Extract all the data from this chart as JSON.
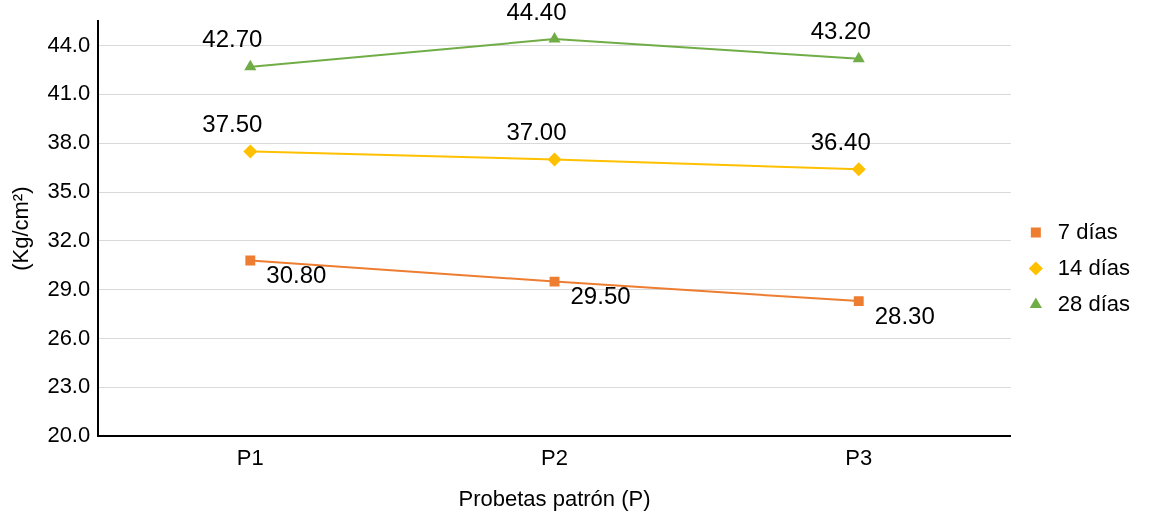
{
  "chart_data": {
    "type": "line",
    "xlabel": "Probetas patrón (P)",
    "ylabel": "(Kg/cm²)",
    "categories": [
      "P1",
      "P2",
      "P3"
    ],
    "series": [
      {
        "name": "7 días",
        "color": "#ed7d31",
        "marker": "square",
        "values": [
          30.8,
          29.5,
          28.3
        ],
        "value_labels": [
          "30.80",
          "29.50",
          "28.30"
        ]
      },
      {
        "name": "14 días",
        "color": "#ffc000",
        "marker": "diamond",
        "values": [
          37.5,
          37.0,
          36.4
        ],
        "value_labels": [
          "37.50",
          "37.00",
          "36.40"
        ]
      },
      {
        "name": "28 días",
        "color": "#70ad47",
        "marker": "triangle",
        "values": [
          42.7,
          44.4,
          43.2
        ],
        "value_labels": [
          "42.70",
          "44.40",
          "43.20"
        ]
      }
    ],
    "ylim": [
      20,
      45.5
    ],
    "yticks": [
      {
        "value": 20,
        "label": "20.0"
      },
      {
        "value": 23,
        "label": "23.0"
      },
      {
        "value": 26,
        "label": "26.0"
      },
      {
        "value": 29,
        "label": "29.0"
      },
      {
        "value": 32,
        "label": "32.0"
      },
      {
        "value": 35,
        "label": "35.0"
      },
      {
        "value": 38,
        "label": "38.0"
      },
      {
        "value": 41,
        "label": "41.0"
      },
      {
        "value": 44,
        "label": "44.0"
      }
    ],
    "grid": "y",
    "legend": "right",
    "line_style": "solid"
  }
}
